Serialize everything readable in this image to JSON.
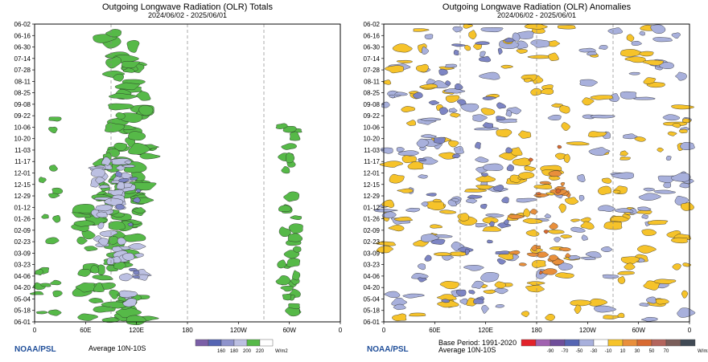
{
  "chart_data": [
    {
      "type": "heatmap",
      "title": "Outgoing Longwave Radiation (OLR) Totals",
      "subtitle": "2024/06/02 - 2025/06/01",
      "y_tick_labels": [
        "06-02",
        "06-16",
        "06-30",
        "07-14",
        "07-28",
        "08-11",
        "08-25",
        "09-08",
        "09-22",
        "10-06",
        "10-20",
        "11-03",
        "11-17",
        "12-01",
        "12-15",
        "12-29",
        "01-12",
        "01-26",
        "02-09",
        "02-23",
        "03-09",
        "03-23",
        "04-06",
        "04-20",
        "05-04",
        "05-18",
        "06-01"
      ],
      "x_tick_labels": [
        "0",
        "60E",
        "120E",
        "180",
        "120W",
        "60W",
        "0"
      ],
      "xlim_deg_east": [
        0,
        360
      ],
      "footer_text": "Average 10N-10S",
      "colorbar_ticks": [
        "160",
        "180",
        "200",
        "220"
      ],
      "colorbar_colors": [
        "#7b5fa7",
        "#5565b3",
        "#8e93cc",
        "#bcc0e2",
        "#56b948",
        "#ffffff"
      ],
      "colorbar_units": "W/m2",
      "logo": "NOAA/PSL",
      "values_legend": "green shading <= 220 W/m2 (deep convection), lavender <= 200, blue <= 180, purple <= 160"
    },
    {
      "type": "heatmap",
      "title": "Outgoing Longwave Radiation (OLR) Anomalies",
      "subtitle": "2024/06/02 - 2025/06/01",
      "y_tick_labels": [
        "06-02",
        "06-16",
        "06-30",
        "07-14",
        "07-28",
        "08-11",
        "08-25",
        "09-08",
        "09-22",
        "10-06",
        "10-20",
        "11-03",
        "11-17",
        "12-01",
        "12-15",
        "12-29",
        "01-12",
        "01-26",
        "02-09",
        "02-23",
        "03-09",
        "03-23",
        "04-06",
        "04-20",
        "05-04",
        "05-18",
        "06-01"
      ],
      "x_tick_labels": [
        "0",
        "60E",
        "120E",
        "180",
        "120W",
        "60W",
        "0"
      ],
      "xlim_deg_east": [
        0,
        360
      ],
      "footer_text": "Base Period: 1991-2020",
      "footer_text_2": "Average 10N-10S",
      "colorbar_ticks": [
        "-90",
        "-70",
        "-50",
        "-30",
        "-10",
        "10",
        "30",
        "50",
        "70"
      ],
      "colorbar_colors": [
        "#e2222a",
        "#a162b0",
        "#6f4e9a",
        "#5565b3",
        "#a8b0dc",
        "#ffffff",
        "#f6c32a",
        "#e98f3b",
        "#d86a31",
        "#b4655d",
        "#7a5e5a",
        "#404a55"
      ],
      "colorbar_units": "W/m2",
      "logo": "NOAA/PSL"
    }
  ],
  "colors": {
    "green": "#56b948",
    "lavender": "#bcc0e2",
    "blue": "#7d85c4",
    "purple": "#6a5da6",
    "neg_light": "#a8b0dc",
    "neg_mid": "#7d85c4",
    "pos_light": "#f6c32a",
    "pos_mid": "#e98f3b",
    "pos_dark": "#d86a31"
  }
}
